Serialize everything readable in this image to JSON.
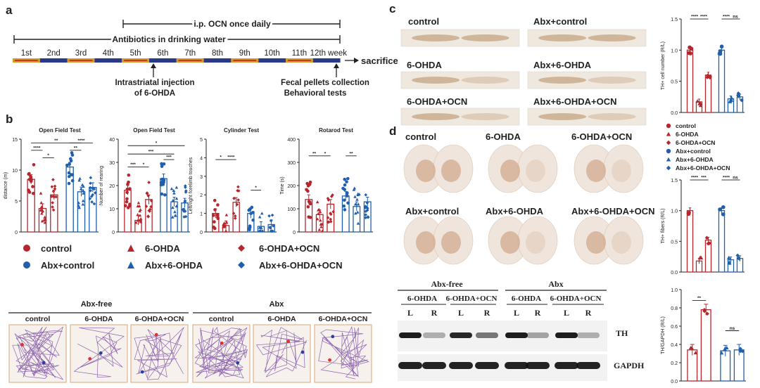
{
  "panel_a": {
    "letter": "a",
    "ip_label": "i.p. OCN once daily",
    "abx_label": "Antibiotics in drinking water",
    "weeks": [
      "1st",
      "2nd",
      "3rd",
      "4th",
      "5th",
      "6th",
      "7th",
      "8th",
      "9th",
      "10th",
      "11th",
      "12th week"
    ],
    "sacrifice": "sacrifice",
    "injection_line1": "Intrastriatal injection",
    "injection_line2": "of 6-OHDA",
    "fecal_line1": "Fecal pellets collection",
    "fecal_line2": "Behavioral tests"
  },
  "panel_b": {
    "letter": "b",
    "legend": {
      "control": "control",
      "ohda": "6-OHDA",
      "ohda_ocn": "6-OHDA+OCN",
      "abx_control": "Abx+control",
      "abx_ohda": "Abx+6-OHDA",
      "abx_ohda_ocn": "Abx+6-OHDA+OCN"
    },
    "track_headers": {
      "abx_free": "Abx-free",
      "abx": "Abx"
    },
    "track_labels": [
      "control",
      "6-OHDA",
      "6-OHDA+OCN",
      "control",
      "6-OHDA",
      "6-OHDA+OCN"
    ]
  },
  "panel_c": {
    "letter": "c",
    "section_labels": [
      "control",
      "Abx+control",
      "6-OHDA",
      "Abx+6-OHDA",
      "6-OHDA+OCN",
      "Abx+6-OHDA+OCN"
    ]
  },
  "panel_d": {
    "letter": "d",
    "brain_labels": [
      "control",
      "6-OHDA",
      "6-OHDA+OCN",
      "Abx+control",
      "Abx+6-OHDA",
      "Abx+6-OHDA+OCN"
    ],
    "side_legend": [
      "control",
      "6-OHDA",
      "6-OHDA+OCN",
      "Abx+control",
      "Abx+6-OHDA",
      "Abx+6-OHDA+OCN"
    ],
    "wb": {
      "abx_free": "Abx-free",
      "abx": "Abx",
      "ohda": "6-OHDA",
      "ohda_ocn": "6-OHDA+OCN",
      "L": "L",
      "R": "R",
      "th": "TH",
      "gapdh": "GAPDH"
    }
  },
  "colors": {
    "red": "#b5272d",
    "blue": "#1f5fae",
    "purple": "#7b4da3"
  },
  "chart_data": [
    {
      "id": "open-field-distance",
      "type": "bar",
      "title": "Open Field Test",
      "ylabel": "distance (m)",
      "ylim": [
        0,
        15
      ],
      "yticks": [
        0,
        5,
        10,
        15
      ],
      "categories": [
        "control",
        "6-OHDA",
        "6-OHDA+OCN",
        "Abx+control",
        "Abx+6-OHDA",
        "Abx+6-OHDA+OCN"
      ],
      "values": [
        8.5,
        3.8,
        6.0,
        10.5,
        6.5,
        7.2
      ],
      "sig_labels": [
        "****",
        "*",
        "**",
        "**",
        "****"
      ]
    },
    {
      "id": "open-field-rearing",
      "type": "bar",
      "title": "Open Field Test",
      "ylabel": "Number of rearing",
      "ylim": [
        0,
        40
      ],
      "yticks": [
        0,
        10,
        20,
        30,
        40
      ],
      "categories": [
        "control",
        "6-OHDA",
        "6-OHDA+OCN",
        "Abx+control",
        "Abx+6-OHDA",
        "Abx+6-OHDA+OCN"
      ],
      "values": [
        18,
        5,
        14,
        23,
        13,
        12.5
      ],
      "sig_labels": [
        "***",
        "*",
        "***",
        "*",
        "***"
      ]
    },
    {
      "id": "cylinder",
      "type": "bar",
      "title": "Cylinder Test",
      "ylabel": "Left/right forelimb touches",
      "ylim": [
        0,
        5
      ],
      "yticks": [
        0,
        1,
        2,
        3,
        4,
        5
      ],
      "categories": [
        "control",
        "6-OHDA",
        "6-OHDA+OCN",
        "Abx+control",
        "Abx+6-OHDA",
        "Abx+6-OHDA+OCN"
      ],
      "values": [
        1.0,
        0.35,
        1.6,
        1.0,
        0.3,
        0.4
      ],
      "sig_labels": [
        "*",
        "****",
        "*"
      ]
    },
    {
      "id": "rotarod",
      "type": "bar",
      "title": "Rotarod Test",
      "ylabel": "Time (s)",
      "ylim": [
        0,
        400
      ],
      "yticks": [
        0,
        100,
        200,
        300,
        400
      ],
      "categories": [
        "control",
        "6-OHDA",
        "6-OHDA+OCN",
        "Abx+control",
        "Abx+6-OHDA",
        "Abx+6-OHDA+OCN"
      ],
      "values": [
        140,
        75,
        120,
        155,
        110,
        130
      ],
      "sig_labels": [
        "**",
        "*",
        "**"
      ]
    },
    {
      "id": "th-cell-number",
      "type": "bar",
      "ylabel": "TH+ cell number (R/L)",
      "ylim": [
        0,
        1.5
      ],
      "yticks": [
        0.0,
        0.5,
        1.0,
        1.5
      ],
      "categories": [
        "control",
        "6-OHDA",
        "6-OHDA+OCN",
        "Abx+control",
        "Abx+6-OHDA",
        "Abx+6-OHDA+OCN"
      ],
      "values": [
        1.0,
        0.17,
        0.6,
        1.0,
        0.22,
        0.25
      ],
      "sig_labels": [
        "****",
        "****",
        "****",
        "ns"
      ]
    },
    {
      "id": "th-fibers",
      "type": "bar",
      "ylabel": "TH+ fibers (R/L)",
      "ylim": [
        0,
        1.5
      ],
      "yticks": [
        0.0,
        0.5,
        1.0,
        1.5
      ],
      "categories": [
        "control",
        "6-OHDA",
        "6-OHDA+OCN",
        "Abx+control",
        "Abx+6-OHDA",
        "Abx+6-OHDA+OCN"
      ],
      "values": [
        1.0,
        0.18,
        0.52,
        1.0,
        0.2,
        0.22
      ],
      "sig_labels": [
        "****",
        "***",
        "****",
        "ns"
      ]
    },
    {
      "id": "th-gapdh",
      "type": "bar",
      "ylabel": "TH/GAPDH (R/L)",
      "ylim": [
        0,
        1.0
      ],
      "yticks": [
        0.0,
        0.2,
        0.4,
        0.6,
        0.8,
        1.0
      ],
      "categories": [
        "6-OHDA",
        "6-OHDA+OCN",
        "Abx+6-OHDA",
        "Abx+6-OHDA+OCN"
      ],
      "values": [
        0.34,
        0.78,
        0.33,
        0.34
      ],
      "sig_labels": [
        "**",
        "ns"
      ]
    }
  ]
}
